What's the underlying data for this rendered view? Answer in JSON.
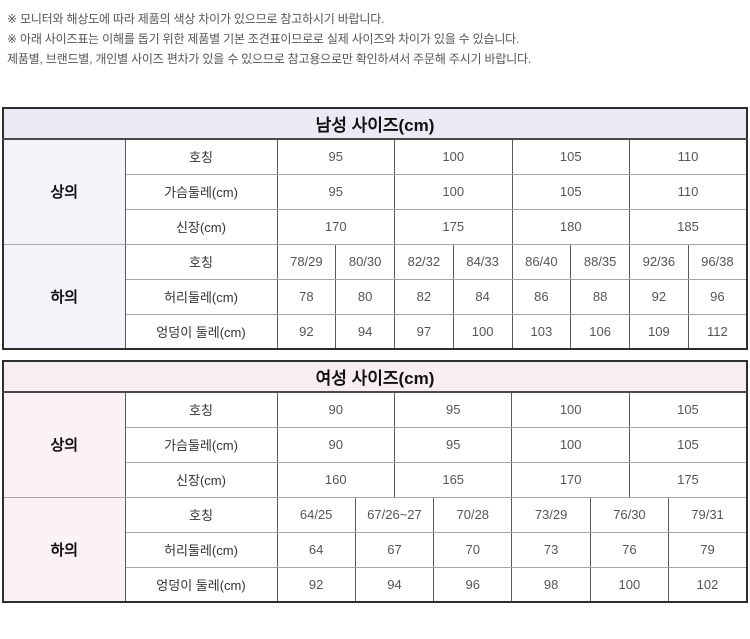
{
  "notes": {
    "line1": "※ 모니터와 해상도에 따라 제품의 색상 차이가 있으므로 참고하시기 바랍니다.",
    "line2": "※ 아래 사이즈표는 이해를 돕기 위한 제품별 기본 조견표이므로로 실제 사이즈와 차이가 있을 수 있습니다.",
    "line3": "제품별, 브랜드별, 개인별 사이즈 편차가 있을 수 있으므로 참고용으로만 확인하셔서 주문해 주시기 바랍니다."
  },
  "colors": {
    "men_title_bg": "#eaeaf4",
    "men_category_bg": "#f3f3fa",
    "women_title_bg": "#f9edf4",
    "women_category_bg": "#fbf1f7",
    "border_outer": "#2e2e2e",
    "border_vertical": "#5a5a5a",
    "border_horizontal": "#a5a5a5",
    "text_data": "#555555"
  },
  "men": {
    "title": "남성 사이즈(cm)",
    "tops": {
      "category": "상의",
      "rows": [
        {
          "label": "호칭",
          "values": [
            "95",
            "100",
            "105",
            "110"
          ]
        },
        {
          "label": "가슴둘레(cm)",
          "values": [
            "95",
            "100",
            "105",
            "110"
          ]
        },
        {
          "label": "신장(cm)",
          "values": [
            "170",
            "175",
            "180",
            "185"
          ]
        }
      ]
    },
    "bottoms": {
      "category": "하의",
      "rows": [
        {
          "label": "호칭",
          "values": [
            "78/29",
            "80/30",
            "82/32",
            "84/33",
            "86/40",
            "88/35",
            "92/36",
            "96/38"
          ]
        },
        {
          "label": "허리둘레(cm)",
          "values": [
            "78",
            "80",
            "82",
            "84",
            "86",
            "88",
            "92",
            "96"
          ]
        },
        {
          "label": "엉덩이 둘레(cm)",
          "values": [
            "92",
            "94",
            "97",
            "100",
            "103",
            "106",
            "109",
            "112"
          ]
        }
      ]
    }
  },
  "women": {
    "title": "여성 사이즈(cm)",
    "tops": {
      "category": "상의",
      "rows": [
        {
          "label": "호칭",
          "values": [
            "90",
            "95",
            "100",
            "105"
          ]
        },
        {
          "label": "가슴둘레(cm)",
          "values": [
            "90",
            "95",
            "100",
            "105"
          ]
        },
        {
          "label": "신장(cm)",
          "values": [
            "160",
            "165",
            "170",
            "175"
          ]
        }
      ]
    },
    "bottoms": {
      "category": "하의",
      "rows": [
        {
          "label": "호칭",
          "values": [
            "64/25",
            "67/26~27",
            "70/28",
            "73/29",
            "76/30",
            "79/31"
          ]
        },
        {
          "label": "허리둘레(cm)",
          "values": [
            "64",
            "67",
            "70",
            "73",
            "76",
            "79"
          ]
        },
        {
          "label": "엉덩이 둘레(cm)",
          "values": [
            "92",
            "94",
            "96",
            "98",
            "100",
            "102"
          ]
        }
      ]
    }
  }
}
